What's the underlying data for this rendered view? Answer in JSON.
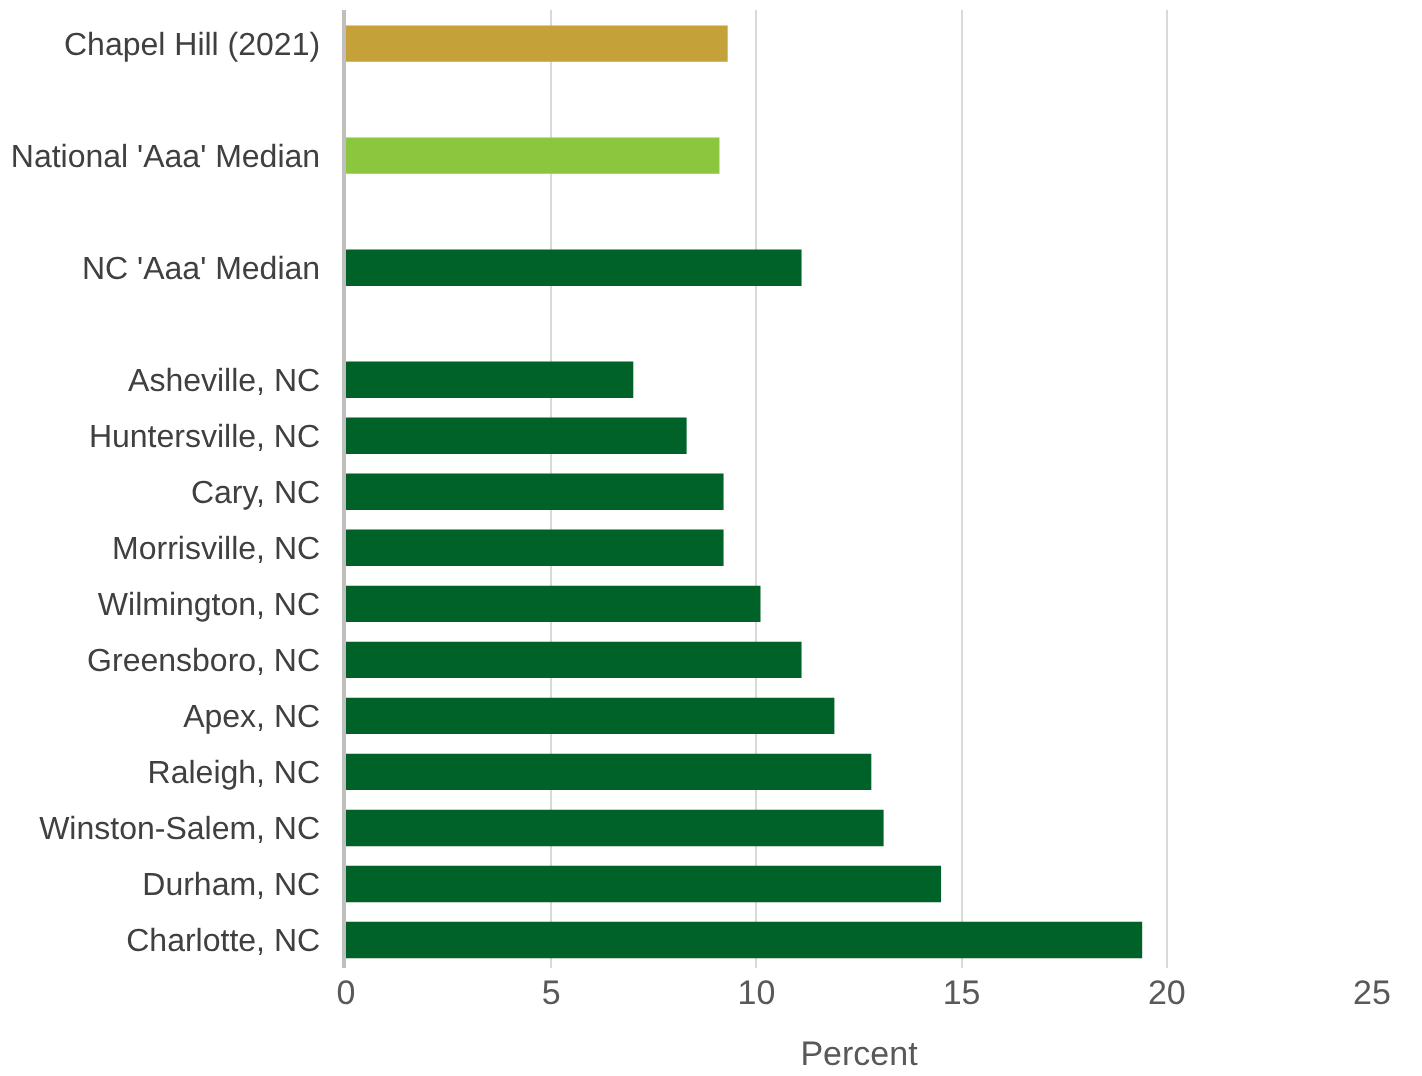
{
  "chart_data": {
    "type": "bar",
    "orientation": "horizontal",
    "xlabel": "Percent",
    "categories": [
      "Chapel Hill (2021)",
      null,
      "National 'Aaa' Median",
      null,
      "NC 'Aaa' Median",
      null,
      "Asheville, NC",
      "Huntersville, NC",
      "Cary, NC",
      "Morrisville, NC",
      "Wilmington, NC",
      "Greensboro, NC",
      "Apex, NC",
      "Raleigh, NC",
      "Winston-Salem, NC",
      "Durham, NC",
      "Charlotte, NC"
    ],
    "values": [
      9.3,
      null,
      9.1,
      null,
      11.1,
      null,
      7.0,
      8.3,
      9.2,
      9.2,
      10.1,
      11.1,
      11.9,
      12.8,
      13.1,
      14.5,
      19.4
    ],
    "colors": [
      "#c5a13a",
      "#006228",
      "#8cc63f",
      "#006228",
      "#006228",
      "#006228",
      "#006228",
      "#006228",
      "#006228",
      "#006228",
      "#006228",
      "#006228",
      "#006228",
      "#006228",
      "#006228",
      "#006228",
      "#006228"
    ],
    "xlim": [
      0,
      25
    ],
    "xticks": [
      0,
      5,
      10,
      15,
      20,
      25
    ],
    "grid": "x"
  }
}
